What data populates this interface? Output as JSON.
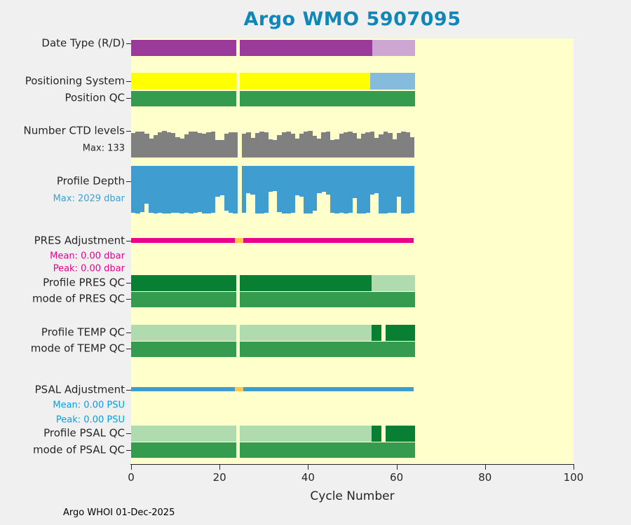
{
  "title": "Argo WMO 5907095",
  "footer": "Argo WHOI 01-Dec-2025",
  "colors": {
    "title": "#0f87b8",
    "text": "#262626",
    "purple": "#9a3a9a",
    "light_purple": "#cda6d2",
    "yellow": "#ffff00",
    "light_blue": "#85bcdd",
    "green": "#359b4e",
    "gray": "#808080",
    "blue": "#3f9ecf",
    "magenta": "#ec008c",
    "orange": "#ffc84d",
    "dark_green": "#087f32",
    "light_green": "#afdbaf",
    "psu_blue": "#00a0e6",
    "plot_bg": "#ffffcc",
    "fig_bg": "#f0f0f0"
  },
  "x_axis": {
    "label": "Cycle Number",
    "range": [
      0,
      100
    ],
    "tick_values": [
      0,
      20,
      40,
      60,
      80,
      100
    ],
    "tick_labels": [
      "0",
      "20",
      "40",
      "60",
      "80",
      "100"
    ]
  },
  "left_labels": [
    {
      "text": "Date Type (R/D)",
      "color": "text",
      "size": 15,
      "tick": true
    },
    {
      "text": "Positioning System",
      "color": "text",
      "size": 15,
      "tick": true
    },
    {
      "text": "Position QC",
      "color": "text",
      "size": 15,
      "tick": true
    },
    {
      "text": "Number CTD levels",
      "color": "text",
      "size": 15,
      "tick": true
    },
    {
      "text": "Max: 133",
      "color": "text",
      "size": 13,
      "tick": false
    },
    {
      "text": "Profile Depth",
      "color": "text",
      "size": 15,
      "tick": true
    },
    {
      "text": "Max: 2029 dbar",
      "color": "blue",
      "size": 13,
      "tick": false
    },
    {
      "text": "PRES Adjustment",
      "color": "text",
      "size": 15,
      "tick": true
    },
    {
      "text": "Mean: 0.00 dbar",
      "color": "magenta",
      "size": 13,
      "tick": false
    },
    {
      "text": "Peak: 0.00 dbar",
      "color": "magenta",
      "size": 13,
      "tick": false
    },
    {
      "text": "Profile PRES QC",
      "color": "text",
      "size": 15,
      "tick": true
    },
    {
      "text": "mode of PRES QC",
      "color": "text",
      "size": 15,
      "tick": true
    },
    {
      "text": "Profile TEMP QC",
      "color": "text",
      "size": 15,
      "tick": true
    },
    {
      "text": "mode of TEMP QC",
      "color": "text",
      "size": 15,
      "tick": true
    },
    {
      "text": "PSAL Adjustment",
      "color": "text",
      "size": 15,
      "tick": true
    },
    {
      "text": "Mean: 0.00 PSU",
      "color": "psu_blue",
      "size": 13,
      "tick": false
    },
    {
      "text": "Peak: 0.00 PSU",
      "color": "psu_blue",
      "size": 13,
      "tick": false
    },
    {
      "text": "Profile PSAL QC",
      "color": "text",
      "size": 15,
      "tick": true
    },
    {
      "text": "mode of PSAL QC",
      "color": "text",
      "size": 15,
      "tick": true
    }
  ],
  "chart_data": {
    "type": "bar",
    "title": "Argo WMO 5907095",
    "xlabel": "Cycle Number",
    "x_range": [
      0,
      100
    ],
    "last_cycle": 64,
    "missing_cycle": 24,
    "rows": [
      {
        "id": "date_type",
        "label": "Date Type (R/D)",
        "style": "solid",
        "segments": [
          {
            "from": 0,
            "to": 23.7,
            "color": "purple"
          },
          {
            "from": 24.6,
            "to": 54.5,
            "color": "purple"
          },
          {
            "from": 54.5,
            "to": 64.2,
            "color": "light_purple"
          }
        ]
      },
      {
        "id": "positioning",
        "label": "Positioning System",
        "style": "solid",
        "segments": [
          {
            "from": 0,
            "to": 23.7,
            "color": "yellow"
          },
          {
            "from": 24.6,
            "to": 54.0,
            "color": "yellow"
          },
          {
            "from": 54.0,
            "to": 64.2,
            "color": "light_blue"
          }
        ]
      },
      {
        "id": "position_qc",
        "label": "Position QC",
        "style": "solid",
        "segments": [
          {
            "from": 0,
            "to": 23.7,
            "color": "green"
          },
          {
            "from": 24.6,
            "to": 64.2,
            "color": "green"
          }
        ]
      },
      {
        "id": "ctd_levels",
        "label": "Number CTD levels",
        "style": "jagged_up",
        "color": "gray",
        "max_label": "Max: 133",
        "max_value": 133,
        "values": [
          122,
          128,
          131,
          119,
          96,
          112,
          127,
          133,
          125,
          121,
          101,
          93,
          116,
          129,
          131,
          124,
          118,
          126,
          130,
          89,
          87,
          120,
          127,
          125,
          0,
          118,
          126,
          97,
          122,
          130,
          127,
          91,
          86,
          113,
          126,
          131,
          120,
          94,
          118,
          129,
          133,
          108,
          96,
          125,
          128,
          86,
          91,
          118,
          126,
          130,
          122,
          96,
          120,
          127,
          131,
          99,
          116,
          128,
          124,
          91,
          122,
          130,
          126,
          101
        ]
      },
      {
        "id": "profile_depth",
        "label": "Profile Depth",
        "style": "jagged_down",
        "color": "blue",
        "max_label": "Max: 2029 dbar",
        "max_value": 2029,
        "values": [
          2000,
          2029,
          1980,
          1620,
          2010,
          2025,
          1995,
          2020,
          2029,
          1985,
          2000,
          2015,
          1990,
          2029,
          2010,
          1960,
          2020,
          2029,
          1995,
          1320,
          1260,
          1910,
          2010,
          2025,
          0,
          2000,
          1160,
          1210,
          2020,
          2029,
          1990,
          1110,
          1060,
          1980,
          2015,
          2029,
          1995,
          1260,
          1310,
          2020,
          2029,
          1900,
          1160,
          1110,
          1210,
          2010,
          2025,
          1995,
          2029,
          2000,
          1360,
          2015,
          2029,
          1990,
          1210,
          1160,
          2020,
          2029,
          1995,
          2010,
          1310,
          2025,
          2029,
          2000
        ]
      },
      {
        "id": "pres_adj",
        "label": "PRES Adjustment",
        "style": "thin",
        "mean": "Mean: 0.00 dbar",
        "peak": "Peak: 0.00 dbar",
        "segments": [
          {
            "from": 0,
            "to": 23.5,
            "color": "magenta"
          },
          {
            "from": 23.5,
            "to": 25.3,
            "color": "orange"
          },
          {
            "from": 25.3,
            "to": 63.8,
            "color": "magenta"
          }
        ]
      },
      {
        "id": "profile_pres_qc",
        "label": "Profile PRES QC",
        "style": "solid",
        "segments": [
          {
            "from": 0,
            "to": 23.7,
            "color": "dark_green"
          },
          {
            "from": 24.6,
            "to": 54.4,
            "color": "dark_green"
          },
          {
            "from": 54.4,
            "to": 64.2,
            "color": "light_green"
          }
        ]
      },
      {
        "id": "mode_pres_qc",
        "label": "mode of PRES QC",
        "style": "solid",
        "segments": [
          {
            "from": 0,
            "to": 23.7,
            "color": "green"
          },
          {
            "from": 24.6,
            "to": 64.2,
            "color": "green"
          }
        ]
      },
      {
        "id": "profile_temp_qc",
        "label": "Profile TEMP QC",
        "style": "solid",
        "segments": [
          {
            "from": 0,
            "to": 23.7,
            "color": "light_green"
          },
          {
            "from": 24.6,
            "to": 54.4,
            "color": "light_green"
          },
          {
            "from": 54.4,
            "to": 56.6,
            "color": "dark_green"
          },
          {
            "from": 57.6,
            "to": 64.2,
            "color": "dark_green"
          }
        ]
      },
      {
        "id": "mode_temp_qc",
        "label": "mode of TEMP QC",
        "style": "solid",
        "segments": [
          {
            "from": 0,
            "to": 23.7,
            "color": "green"
          },
          {
            "from": 24.6,
            "to": 64.2,
            "color": "green"
          }
        ]
      },
      {
        "id": "psal_adj",
        "label": "PSAL Adjustment",
        "style": "thin",
        "mean": "Mean: 0.00 PSU",
        "peak": "Peak: 0.00 PSU",
        "segments": [
          {
            "from": 0,
            "to": 23.5,
            "color": "blue"
          },
          {
            "from": 23.5,
            "to": 25.3,
            "color": "orange"
          },
          {
            "from": 25.3,
            "to": 63.8,
            "color": "blue"
          }
        ]
      },
      {
        "id": "profile_psal_qc",
        "label": "Profile PSAL QC",
        "style": "solid",
        "segments": [
          {
            "from": 0,
            "to": 23.7,
            "color": "light_green"
          },
          {
            "from": 24.6,
            "to": 54.4,
            "color": "light_green"
          },
          {
            "from": 54.4,
            "to": 56.6,
            "color": "dark_green"
          },
          {
            "from": 57.6,
            "to": 64.2,
            "color": "dark_green"
          }
        ]
      },
      {
        "id": "mode_psal_qc",
        "label": "mode of PSAL QC",
        "style": "solid",
        "segments": [
          {
            "from": 0,
            "to": 23.7,
            "color": "green"
          },
          {
            "from": 24.6,
            "to": 64.2,
            "color": "green"
          }
        ]
      }
    ]
  }
}
